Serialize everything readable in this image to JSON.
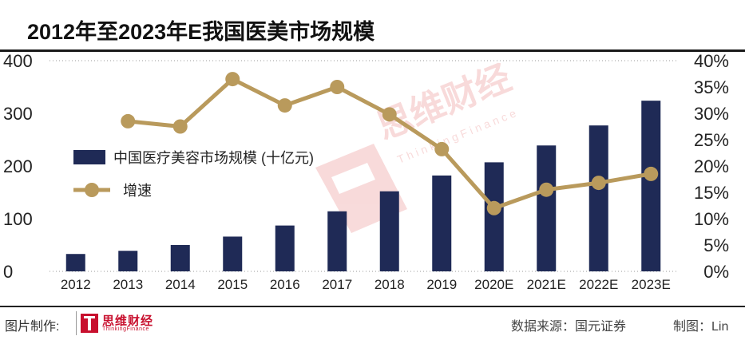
{
  "title": "2012年至2023年E我国医美市场规模",
  "footer": {
    "made_by_label": "图片制作:",
    "logo_text": "思维财经",
    "logo_sub": "ThinkingFinance",
    "source": "数据来源：国元证券",
    "author": "制图：Lin"
  },
  "watermark": {
    "text": "思维财经",
    "sub": "ThinkingFinance"
  },
  "colors": {
    "bar": "#1f2a56",
    "line": "#b99a5c",
    "grid": "#9a9a9a",
    "watermark": "#e05a5a"
  },
  "chart_data": {
    "type": "bar",
    "categories": [
      "2012",
      "2013",
      "2014",
      "2015",
      "2016",
      "2017",
      "2018",
      "2019",
      "2020E",
      "2021E",
      "2022E",
      "2023E"
    ],
    "series": [
      {
        "name": "中国医疗美容市场规模 (十亿元)",
        "type": "bar",
        "axis": "left",
        "values": [
          33,
          39,
          50,
          66,
          87,
          114,
          152,
          182,
          207,
          239,
          277,
          324
        ]
      },
      {
        "name": "增速",
        "type": "line",
        "axis": "right",
        "values": [
          null,
          28.5,
          27.5,
          36.5,
          31.5,
          35.0,
          29.8,
          23.2,
          12.0,
          15.5,
          16.8,
          18.5
        ]
      }
    ],
    "left_axis": {
      "ylim": [
        0,
        400
      ],
      "ticks": [
        "0",
        "100",
        "200",
        "300",
        "400"
      ]
    },
    "right_axis": {
      "ylim": [
        0,
        40
      ],
      "ticks": [
        "0%",
        "5%",
        "10%",
        "15%",
        "20%",
        "25%",
        "30%",
        "35%",
        "40%"
      ]
    },
    "grid": "top dotted line only",
    "legend_position": "middle-left"
  }
}
